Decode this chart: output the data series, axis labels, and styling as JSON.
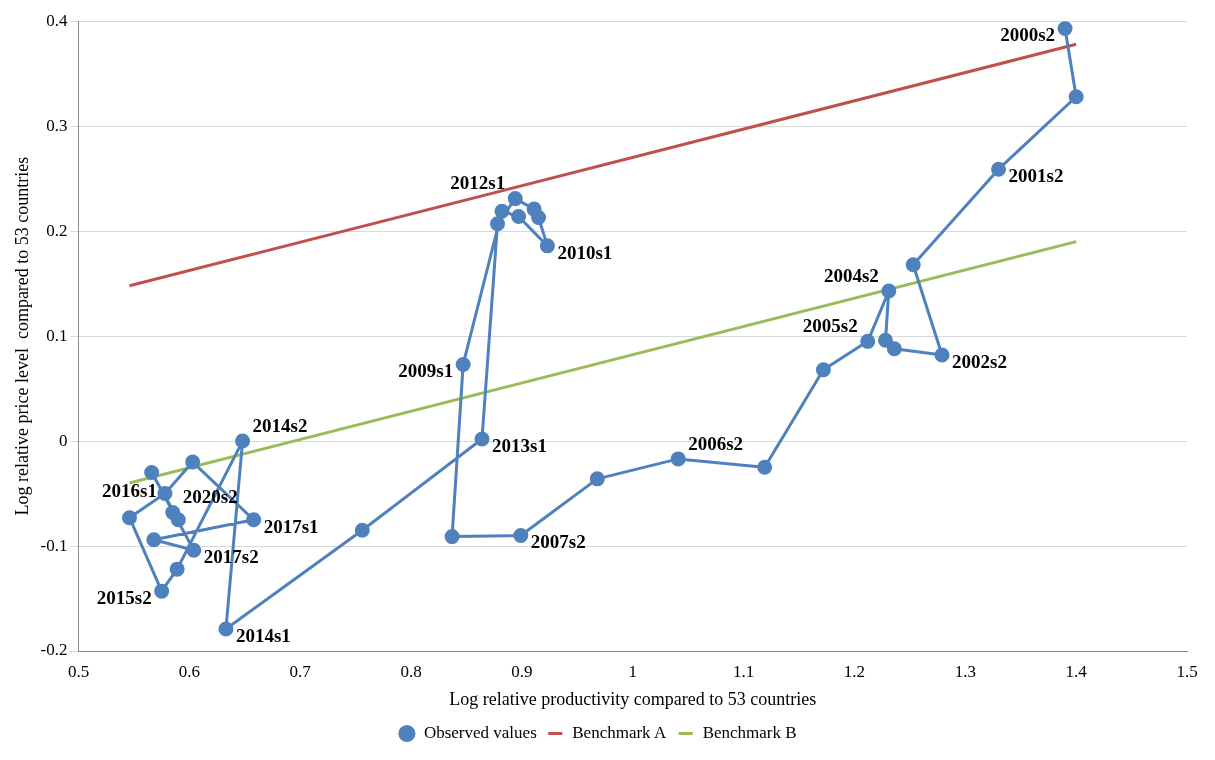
{
  "chart_data": {
    "type": "line",
    "xlabel": "Log relative productivity compared to 53 countries",
    "ylabel": "Log relative price level  compared to 53 countries",
    "xlim": [
      0.5,
      1.5
    ],
    "xticks": [
      0.5,
      0.6,
      0.7,
      0.8,
      0.9,
      1,
      1.1,
      1.2,
      1.3,
      1.4,
      1.5
    ],
    "ylim": [
      -0.2,
      0.4
    ],
    "yticks": [
      -0.2,
      -0.1,
      0,
      0.1,
      0.2,
      0.3,
      0.4
    ],
    "grid": "y",
    "legend": "bottom",
    "series": [
      {
        "name": "Observed values",
        "color": "#4f81bd",
        "marker": "circle",
        "x": [
          1.39,
          1.4,
          1.33,
          1.253,
          1.279,
          1.236,
          1.228,
          1.231,
          1.212,
          1.172,
          1.119,
          1.041,
          0.968,
          0.899,
          0.837,
          0.847,
          0.882,
          0.897,
          0.923,
          0.915,
          0.911,
          0.894,
          0.878,
          0.864,
          0.756,
          0.633,
          0.648,
          0.589,
          0.575,
          0.546,
          0.578,
          0.603,
          0.658,
          0.568,
          0.604,
          0.566,
          0.59,
          0.585
        ],
        "values": [
          0.393,
          0.328,
          0.259,
          0.168,
          0.082,
          0.088,
          0.096,
          0.143,
          0.095,
          0.068,
          -0.025,
          -0.017,
          -0.036,
          -0.09,
          -0.091,
          0.073,
          0.219,
          0.214,
          0.186,
          0.213,
          0.221,
          0.231,
          0.207,
          0.002,
          -0.085,
          -0.179,
          0.0,
          -0.122,
          -0.143,
          -0.073,
          -0.05,
          -0.02,
          -0.075,
          -0.094,
          -0.104,
          -0.03,
          -0.075,
          -0.068
        ]
      },
      {
        "name": "Benchmark A",
        "color": "#c0504d",
        "marker": "none",
        "x": [
          0.546,
          1.4
        ],
        "values": [
          0.148,
          0.378
        ]
      },
      {
        "name": "Benchmark B",
        "color": "#9bbb59",
        "marker": "none",
        "x": [
          0.546,
          1.4
        ],
        "values": [
          -0.04,
          0.19
        ]
      }
    ],
    "annotations": [
      {
        "text": "2000s2",
        "x": 1.39,
        "y": 0.393
      },
      {
        "text": "2001s2",
        "x": 1.33,
        "y": 0.259
      },
      {
        "text": "2002s2",
        "x": 1.279,
        "y": 0.082
      },
      {
        "text": "2004s2",
        "x": 1.231,
        "y": 0.143
      },
      {
        "text": "2005s2",
        "x": 1.212,
        "y": 0.095
      },
      {
        "text": "2006s2",
        "x": 1.041,
        "y": -0.017
      },
      {
        "text": "2007s2",
        "x": 0.899,
        "y": -0.09
      },
      {
        "text": "2009s1",
        "x": 0.847,
        "y": 0.073
      },
      {
        "text": "2010s1",
        "x": 0.923,
        "y": 0.186
      },
      {
        "text": "2012s1",
        "x": 0.894,
        "y": 0.231
      },
      {
        "text": "2013s1",
        "x": 0.864,
        "y": 0.002
      },
      {
        "text": "2014s1",
        "x": 0.633,
        "y": -0.179
      },
      {
        "text": "2014s2",
        "x": 0.648,
        "y": 0.0
      },
      {
        "text": "2015s2",
        "x": 0.575,
        "y": -0.143
      },
      {
        "text": "2016s1",
        "x": 0.546,
        "y": -0.073
      },
      {
        "text": "2017s1",
        "x": 0.658,
        "y": -0.075
      },
      {
        "text": "2017s2",
        "x": 0.604,
        "y": -0.104
      },
      {
        "text": "2020s2",
        "x": 0.585,
        "y": -0.068
      }
    ]
  }
}
